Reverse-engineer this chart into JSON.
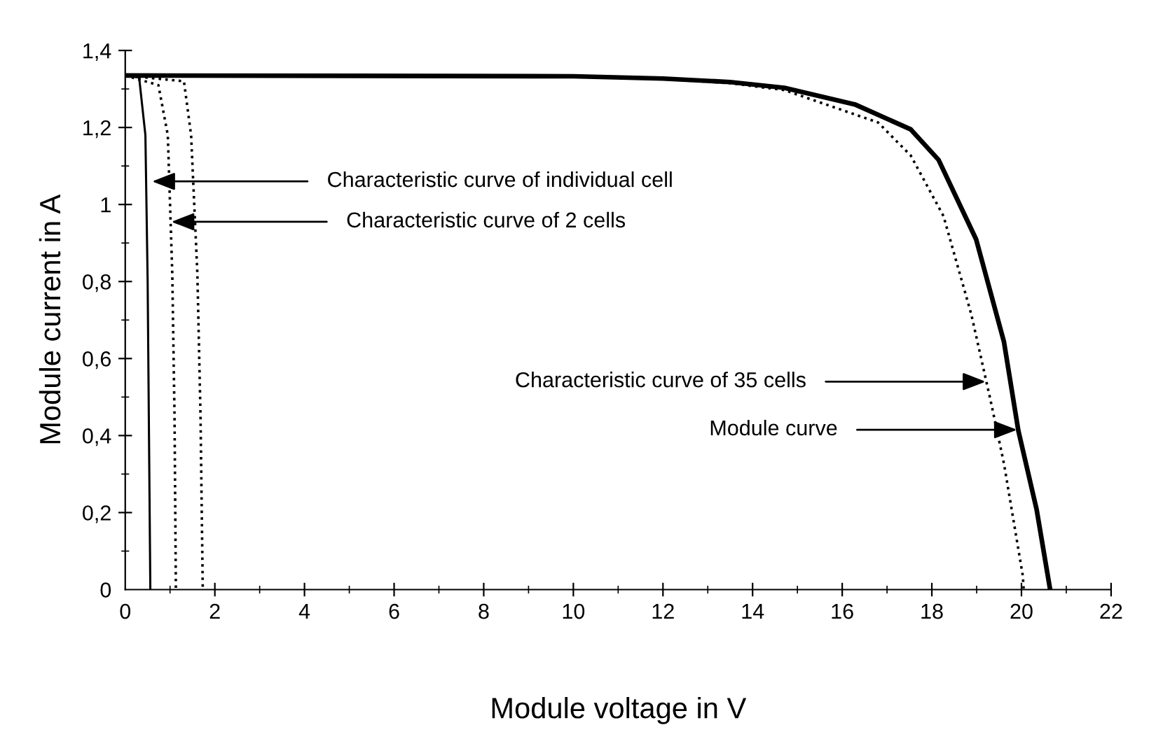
{
  "chart_data": {
    "type": "line",
    "xlabel": "Module voltage in V",
    "ylabel": "Module current in A",
    "xlim": [
      0,
      22
    ],
    "ylim": [
      0,
      1.4
    ],
    "xticks": [
      0,
      2,
      4,
      6,
      8,
      10,
      12,
      14,
      16,
      18,
      20,
      22
    ],
    "yticks": [
      0,
      {
        "value": 0.2,
        "label": "0,2"
      },
      {
        "value": 0.4,
        "label": "0,4"
      },
      {
        "value": 0.6,
        "label": "0,6"
      },
      {
        "value": 0.8,
        "label": "0,8"
      },
      1,
      {
        "value": 1.2,
        "label": "1,2"
      },
      {
        "value": 1.4,
        "label": "1,4"
      }
    ],
    "grid": false,
    "legend": false,
    "marker": "none",
    "series": [
      {
        "color": "#000000",
        "line_style": "solid",
        "x": [
          0,
          0.31,
          0.45,
          0.5,
          0.53,
          0.56
        ],
        "values": [
          1.335,
          1.33,
          1.18,
          0.8,
          0.4,
          0
        ]
      },
      {
        "color": "#000000",
        "line_style": "dotted",
        "x": [
          0,
          0.74,
          0.95,
          1.05,
          1.1,
          1.13
        ],
        "values": [
          1.335,
          1.31,
          1.18,
          0.82,
          0.45,
          0
        ]
      },
      {
        "color": "#000000",
        "line_style": "dotted",
        "x": [
          0,
          1.31,
          1.47,
          1.61,
          1.68,
          1.73
        ],
        "values": [
          1.335,
          1.32,
          1.18,
          0.82,
          0.45,
          0
        ]
      },
      {
        "color": "#000000",
        "line_style": "dotted",
        "x": [
          0,
          10,
          12,
          13.5,
          14.71,
          16.8,
          17.53,
          18.26,
          18.88,
          19.3,
          19.61,
          20.03,
          20.05
        ],
        "values": [
          1.335,
          1.333,
          1.326,
          1.315,
          1.297,
          1.213,
          1.127,
          0.97,
          0.715,
          0.497,
          0.327,
          0.036,
          0
        ]
      },
      {
        "color": "#000000",
        "line_style": "solid",
        "x": [
          0,
          10,
          12,
          13.5,
          14.71,
          16.28,
          17.53,
          18.15,
          18.99,
          19.61,
          19.93,
          20.34,
          20.64
        ],
        "values": [
          1.335,
          1.333,
          1.327,
          1.318,
          1.303,
          1.26,
          1.195,
          1.116,
          0.909,
          0.643,
          0.413,
          0.207,
          0
        ]
      }
    ],
    "annotations": [
      {
        "text": "Characteristic curve of individual cell",
        "x": 0.6,
        "y": 1.06
      },
      {
        "text": "Characteristic curve of 2 cells",
        "x": 1.03,
        "y": 0.955
      },
      {
        "text": "Characteristic curve of 35 cells",
        "x": 19.2,
        "y": 0.54
      },
      {
        "text": "Module curve",
        "x": 19.9,
        "y": 0.415
      }
    ]
  }
}
